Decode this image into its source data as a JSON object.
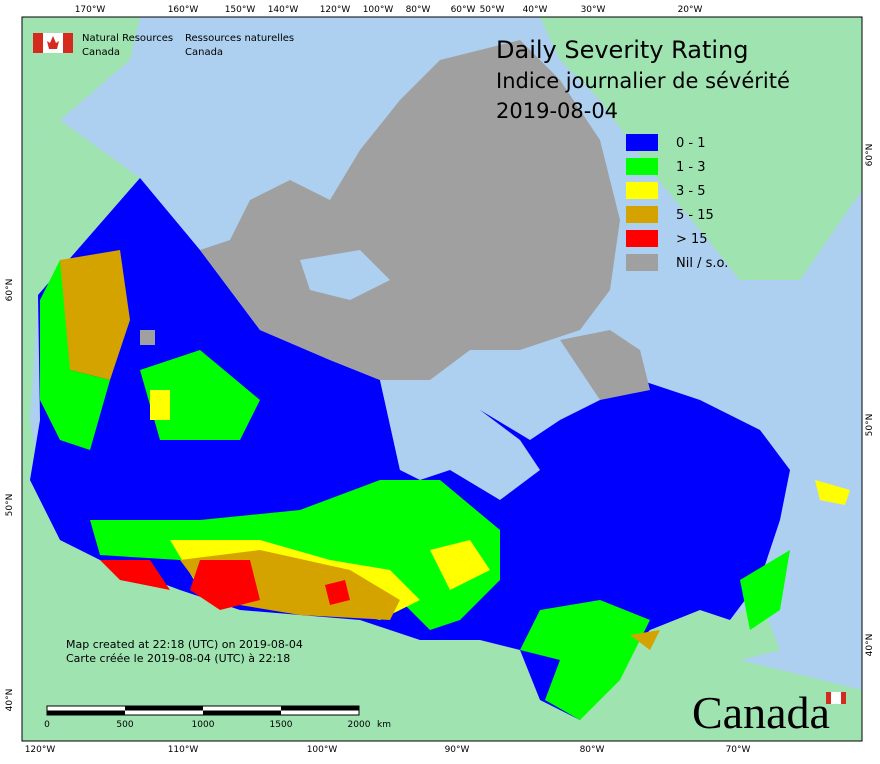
{
  "header": {
    "agency_en": [
      "Natural Resources",
      "Canada"
    ],
    "agency_fr": [
      "Ressources naturelles",
      "Canada"
    ]
  },
  "title": [
    "Daily Severity Rating",
    "Indice journalier de sévérité",
    "2019-08-04"
  ],
  "legend": [
    {
      "label": "0 - 1",
      "color": "#0000ff"
    },
    {
      "label": "1 - 3",
      "color": "#00ff00"
    },
    {
      "label": "3 - 5",
      "color": "#ffff00"
    },
    {
      "label": "5 - 15",
      "color": "#d4a300"
    },
    {
      "label": "> 15",
      "color": "#ff0000"
    },
    {
      "label": "Nil / s.o.",
      "color": "#a0a0a0"
    }
  ],
  "graticule": {
    "top": [
      "170°W",
      "160°W",
      "150°W",
      "140°W",
      "120°W",
      "100°W",
      "80°W",
      "60°W",
      "50°W",
      "40°W",
      "30°W",
      "20°W"
    ],
    "bottom": [
      "120°W",
      "110°W",
      "100°W",
      "90°W",
      "80°W",
      "70°W"
    ],
    "left": [
      "60°N",
      "50°N",
      "40°N"
    ],
    "right": [
      "60°N",
      "50°N",
      "40°N"
    ]
  },
  "footer": [
    "Map created at 22:18 (UTC) on 2019-08-04",
    "Carte créée le 2019-08-04 (UTC) à 22:18"
  ],
  "scale": {
    "labels": [
      "0",
      "500",
      "1000",
      "1500",
      "2000"
    ],
    "unit": "km"
  },
  "wordmark": "Canada"
}
